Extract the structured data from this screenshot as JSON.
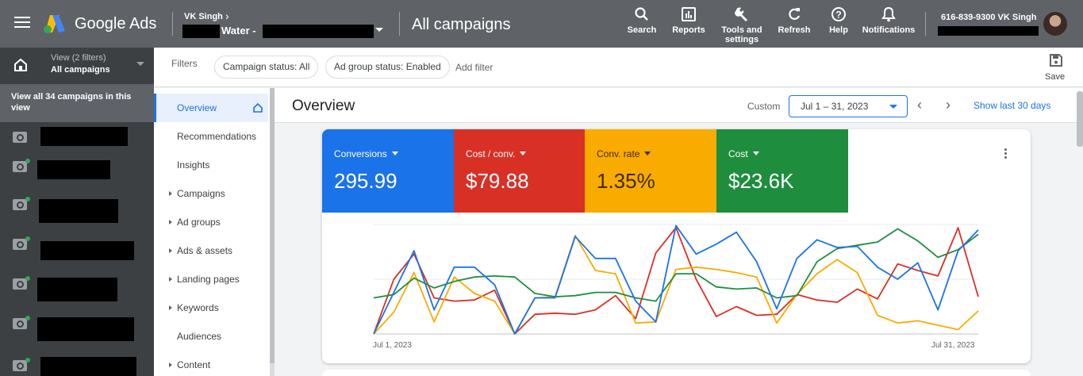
{
  "header": {
    "brand": "Google Ads",
    "account_name": "VK Singh",
    "account_sub": "Water -",
    "page_title": "All campaigns",
    "tools": [
      {
        "label": "Search",
        "icon": "search-icon"
      },
      {
        "label": "Reports",
        "icon": "reports-icon"
      },
      {
        "label": "Tools and settings",
        "icon": "wrench-icon"
      },
      {
        "label": "Refresh",
        "icon": "refresh-icon"
      },
      {
        "label": "Help",
        "icon": "help-icon"
      },
      {
        "label": "Notifications",
        "icon": "bell-icon"
      }
    ],
    "user": "616-839-9300 VK Singh"
  },
  "view": {
    "label": "View (2 filters)",
    "value": "All campaigns",
    "view_all": "View all 34 campaigns in this view"
  },
  "filters": {
    "label": "Filters",
    "chips": [
      "Campaign status: All",
      "Ad group status: Enabled"
    ],
    "add": "Add filter",
    "save": "Save"
  },
  "page_menu": {
    "items": [
      {
        "label": "Overview",
        "expandable": false,
        "active": true
      },
      {
        "label": "Recommendations",
        "expandable": false,
        "active": false
      },
      {
        "label": "Insights",
        "expandable": false,
        "active": false
      },
      {
        "label": "Campaigns",
        "expandable": true,
        "active": false
      },
      {
        "label": "Ad groups",
        "expandable": true,
        "active": false
      },
      {
        "label": "Ads & assets",
        "expandable": true,
        "active": false
      },
      {
        "label": "Landing pages",
        "expandable": true,
        "active": false
      },
      {
        "label": "Keywords",
        "expandable": true,
        "active": false
      },
      {
        "label": "Audiences",
        "expandable": false,
        "active": false
      },
      {
        "label": "Content",
        "expandable": true,
        "active": false
      }
    ]
  },
  "overview": {
    "title": "Overview",
    "custom_label": "Custom",
    "date_range": "Jul 1 – 31, 2023",
    "show_last": "Show last 30 days"
  },
  "metrics": [
    {
      "label": "Conversions",
      "value": "295.99",
      "color": "#1a73e8"
    },
    {
      "label": "Cost / conv.",
      "value": "$79.88",
      "color": "#d93025"
    },
    {
      "label": "Conv. rate",
      "value": "1.35%",
      "color": "#f9ab00"
    },
    {
      "label": "Cost",
      "value": "$23.6K",
      "color": "#1e8e3e"
    }
  ],
  "chart_data": {
    "type": "line",
    "x": [
      "Jul 1",
      "Jul 2",
      "Jul 3",
      "Jul 4",
      "Jul 5",
      "Jul 6",
      "Jul 7",
      "Jul 8",
      "Jul 9",
      "Jul 10",
      "Jul 11",
      "Jul 12",
      "Jul 13",
      "Jul 14",
      "Jul 15",
      "Jul 16",
      "Jul 17",
      "Jul 18",
      "Jul 19",
      "Jul 20",
      "Jul 21",
      "Jul 22",
      "Jul 23",
      "Jul 24",
      "Jul 25",
      "Jul 26",
      "Jul 27",
      "Jul 28",
      "Jul 29",
      "Jul 30",
      "Jul 31"
    ],
    "x_tick_labels": [
      "Jul 1, 2023",
      "Jul 31, 2023"
    ],
    "ylim": [
      0,
      1
    ],
    "grid": true,
    "legend": "none",
    "series": [
      {
        "color": "#1a73e8",
        "values": [
          0.0,
          0.38,
          0.76,
          0.22,
          0.61,
          0.61,
          0.45,
          0.0,
          0.33,
          0.33,
          0.89,
          0.69,
          0.69,
          0.3,
          0.11,
          0.99,
          0.73,
          0.82,
          0.93,
          0.66,
          0.23,
          0.69,
          0.86,
          0.79,
          0.8,
          0.61,
          0.5,
          0.65,
          0.22,
          0.76,
          0.95
        ]
      },
      {
        "color": "#d93025",
        "values": [
          0.0,
          0.5,
          0.73,
          0.33,
          0.3,
          0.31,
          0.4,
          0.0,
          0.18,
          0.19,
          0.18,
          0.22,
          0.35,
          0.14,
          0.74,
          0.97,
          0.5,
          0.16,
          0.25,
          0.17,
          0.18,
          0.36,
          0.31,
          0.29,
          0.41,
          0.32,
          0.64,
          0.58,
          0.53,
          0.97,
          0.34
        ]
      },
      {
        "color": "#f9ab00",
        "values": [
          0.0,
          0.2,
          0.56,
          0.11,
          0.52,
          0.37,
          0.3,
          0.0,
          0.33,
          0.34,
          0.9,
          0.58,
          0.55,
          0.1,
          0.11,
          0.59,
          0.61,
          0.59,
          0.56,
          0.52,
          0.1,
          0.36,
          0.55,
          0.68,
          0.56,
          0.17,
          0.1,
          0.12,
          0.08,
          0.04,
          0.21
        ]
      },
      {
        "color": "#1e8e3e",
        "values": [
          0.33,
          0.36,
          0.51,
          0.42,
          0.48,
          0.52,
          0.53,
          0.52,
          0.37,
          0.34,
          0.35,
          0.38,
          0.38,
          0.33,
          0.3,
          0.55,
          0.55,
          0.43,
          0.41,
          0.42,
          0.33,
          0.35,
          0.66,
          0.78,
          0.81,
          0.84,
          0.96,
          0.85,
          0.7,
          0.77,
          0.91
        ]
      }
    ]
  }
}
